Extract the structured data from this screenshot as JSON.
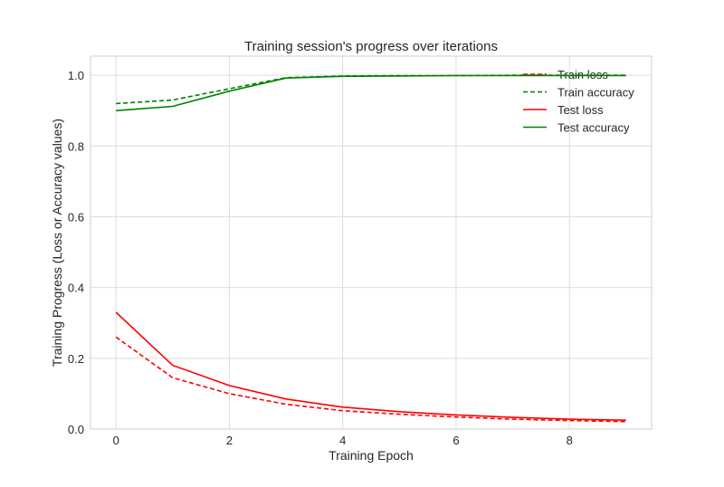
{
  "chart_data": {
    "type": "line",
    "title": "Training session's progress over iterations",
    "xlabel": "Training Epoch",
    "ylabel": "Training Progress (Loss or Accuracy values)",
    "xlim": [
      -0.45,
      9.45
    ],
    "ylim": [
      0.0,
      1.054
    ],
    "xticks": [
      0,
      2,
      4,
      6,
      8
    ],
    "yticks": [
      0.0,
      0.2,
      0.4,
      0.6,
      0.8,
      1.0
    ],
    "xtick_labels": [
      "0",
      "2",
      "4",
      "6",
      "8"
    ],
    "ytick_labels": [
      "0.0",
      "0.2",
      "0.4",
      "0.6",
      "0.8",
      "1.0"
    ],
    "grid": true,
    "legend_position": "top-right",
    "x": [
      0,
      1,
      2,
      3,
      4,
      5,
      6,
      7,
      8,
      9
    ],
    "series": [
      {
        "name": "Train loss",
        "color": "#ff0000",
        "style": "dashed",
        "values": [
          0.26,
          0.145,
          0.1,
          0.07,
          0.052,
          0.042,
          0.034,
          0.028,
          0.024,
          0.021
        ]
      },
      {
        "name": "Train accuracy",
        "color": "#008000",
        "style": "dashed",
        "values": [
          0.92,
          0.93,
          0.962,
          0.993,
          0.998,
          0.999,
          0.999,
          1.0,
          1.0,
          1.0
        ]
      },
      {
        "name": "Test loss",
        "color": "#ff0000",
        "style": "solid",
        "values": [
          0.33,
          0.18,
          0.123,
          0.085,
          0.062,
          0.049,
          0.04,
          0.033,
          0.028,
          0.025
        ]
      },
      {
        "name": "Test accuracy",
        "color": "#008000",
        "style": "solid",
        "values": [
          0.9,
          0.912,
          0.955,
          0.992,
          0.997,
          0.998,
          0.999,
          0.999,
          0.999,
          0.999
        ]
      }
    ]
  }
}
